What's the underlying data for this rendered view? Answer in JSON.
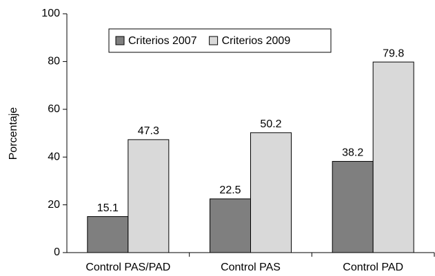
{
  "chart_data": {
    "type": "bar",
    "y_label": "Porcentaje",
    "categories": [
      "Control PAS/PAD",
      "Control PAS",
      "Control PAD"
    ],
    "series": [
      {
        "name": "Criterios 2007",
        "color": "#7f7f7f",
        "values": [
          15.1,
          22.5,
          38.2
        ]
      },
      {
        "name": "Criterios 2009",
        "color": "#d9d9d9",
        "values": [
          47.3,
          50.2,
          79.8
        ]
      }
    ],
    "ylim": [
      0,
      100
    ],
    "yticks": [
      0,
      20,
      40,
      60,
      80,
      100
    ],
    "legend": "top"
  }
}
